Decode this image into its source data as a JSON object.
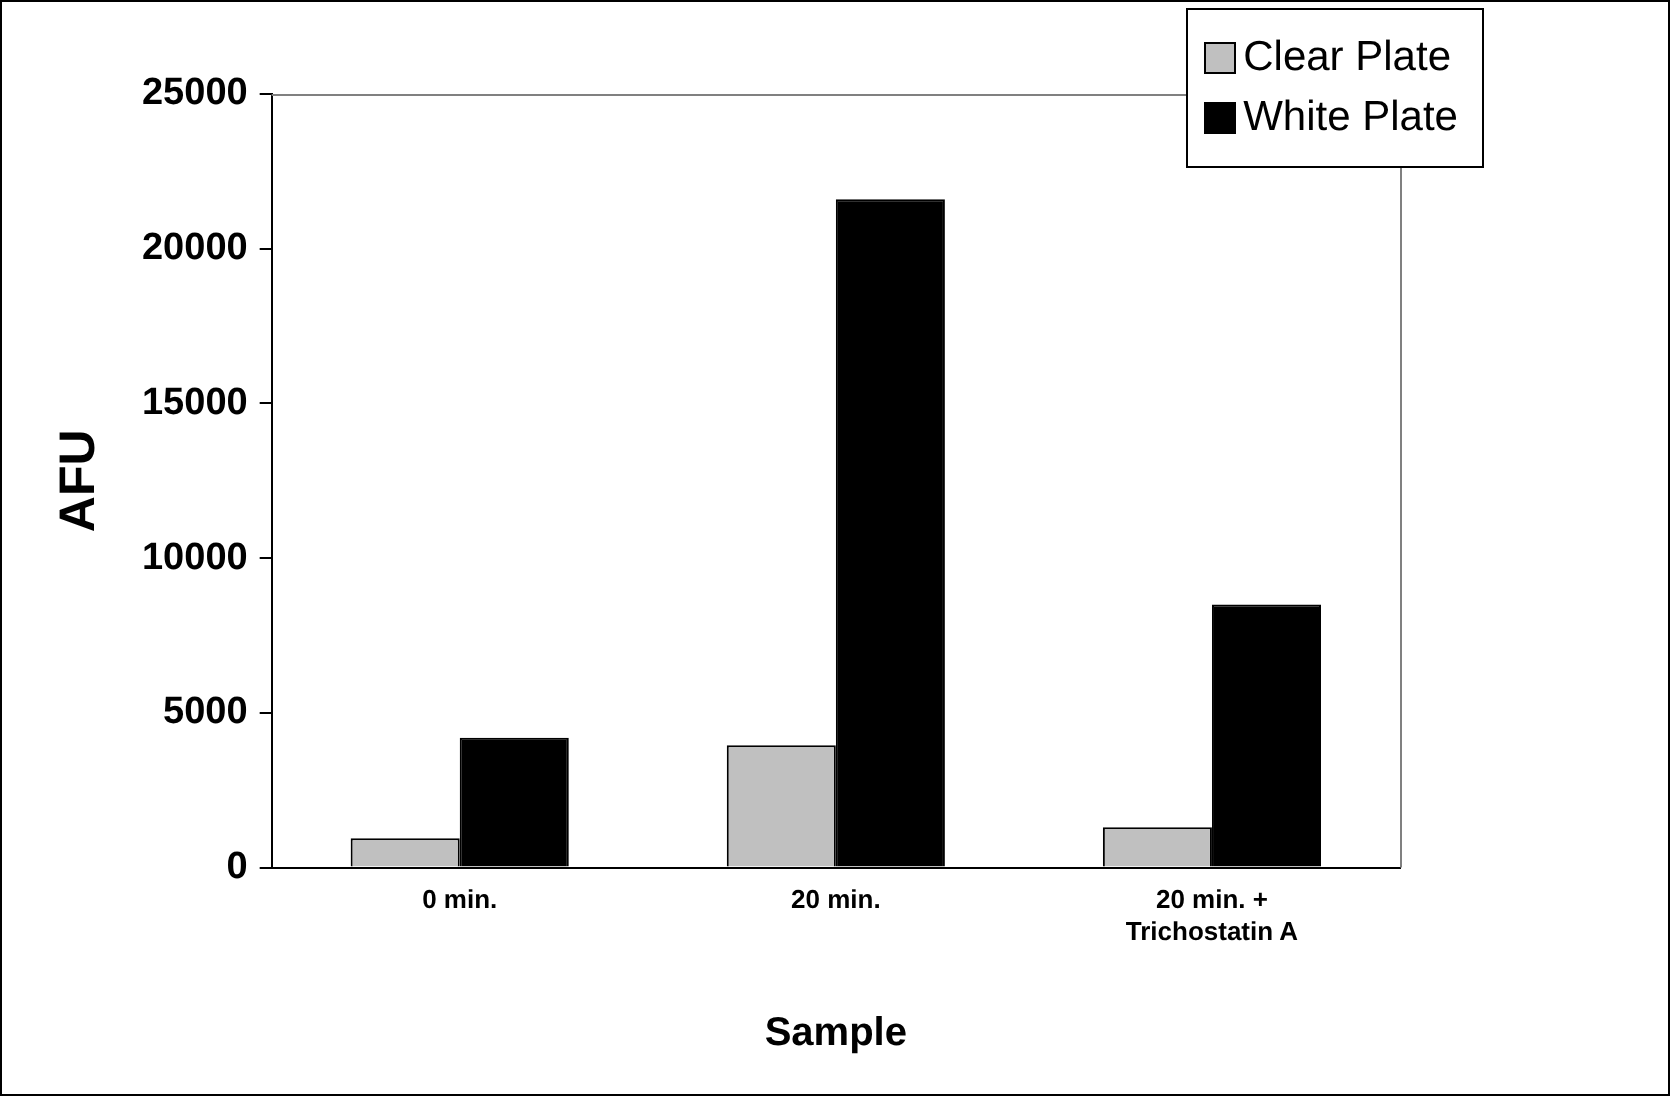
{
  "chart_data": {
    "type": "bar",
    "xlabel": "Sample",
    "ylabel": "AFU",
    "categories": [
      "0 min.",
      "20 min.",
      "20 min. +\nTrichostatin A"
    ],
    "series": [
      {
        "name": "Clear Plate",
        "color": "#c0c0c0",
        "values": [
          950,
          3950,
          1300
        ]
      },
      {
        "name": "White Plate",
        "color": "#000000",
        "values": [
          4200,
          21600,
          8500
        ]
      }
    ],
    "ylim": [
      0,
      25000
    ],
    "yticks": [
      0,
      5000,
      10000,
      15000,
      20000,
      25000
    ],
    "grid": false,
    "legend": "top right"
  }
}
